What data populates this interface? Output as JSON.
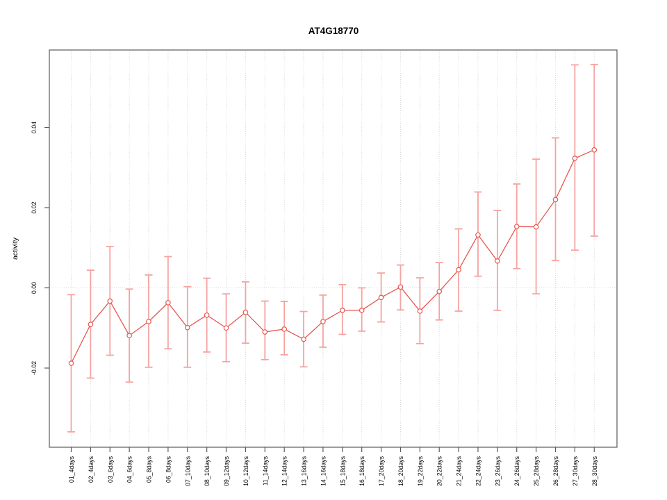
{
  "chart_data": {
    "type": "line",
    "title": "AT4G18770",
    "ylabel": "activity",
    "xlabel": "",
    "legend": "none",
    "marker": "open-circle",
    "error_bars": true,
    "categories": [
      "01_4days",
      "02_4days",
      "03_6days",
      "04_6days",
      "05_8days",
      "06_8days",
      "07_10days",
      "08_10days",
      "09_12days",
      "10_12days",
      "11_14days",
      "12_14days",
      "13_16days",
      "14_16days",
      "15_18days",
      "16_18days",
      "17_20days",
      "18_20days",
      "19_22days",
      "20_22days",
      "21_24days",
      "22_24days",
      "23_26days",
      "24_26days",
      "25_28days",
      "26_28days",
      "27_30days",
      "28_30days"
    ],
    "series": [
      {
        "name": "activity",
        "values": [
          -0.0188,
          -0.0091,
          -0.0033,
          -0.0119,
          -0.0084,
          -0.0037,
          -0.0099,
          -0.0068,
          -0.01,
          -0.0061,
          -0.011,
          -0.0103,
          -0.0128,
          -0.0084,
          -0.0056,
          -0.0056,
          -0.0024,
          0.0002,
          -0.0058,
          -0.0009,
          0.0045,
          0.0132,
          0.0067,
          0.0153,
          0.0152,
          0.022,
          0.0323,
          0.0344
        ],
        "upper": [
          -0.0017,
          0.0044,
          0.0103,
          -0.0003,
          0.0032,
          0.0078,
          0.0003,
          0.0024,
          -0.0015,
          0.0015,
          -0.0033,
          -0.0034,
          -0.0059,
          -0.0018,
          0.0008,
          0.0,
          0.0037,
          0.0057,
          0.0025,
          0.0063,
          0.0147,
          0.0239,
          0.0193,
          0.0259,
          0.0321,
          0.0374,
          0.0556,
          0.0557
        ],
        "lower": [
          -0.0359,
          -0.0225,
          -0.0168,
          -0.0235,
          -0.0198,
          -0.0152,
          -0.0198,
          -0.016,
          -0.0184,
          -0.0138,
          -0.0179,
          -0.0167,
          -0.0197,
          -0.0148,
          -0.0116,
          -0.0108,
          -0.0085,
          -0.0055,
          -0.0139,
          -0.008,
          -0.0058,
          0.0029,
          -0.0056,
          0.0048,
          -0.0015,
          0.0068,
          0.0094,
          0.0129
        ]
      }
    ],
    "yticks": [
      {
        "value": -0.02,
        "label": "-0.02"
      },
      {
        "value": 0.0,
        "label": "0.00"
      },
      {
        "value": 0.02,
        "label": "0.02"
      },
      {
        "value": 0.04,
        "label": "0.04"
      }
    ],
    "ylim": [
      -0.0397,
      0.0593
    ],
    "grid": {
      "vertical_per_category": true,
      "horizontal_at_zero": true,
      "style": "dotted"
    },
    "colors": {
      "series": "#e9564f",
      "error_bar": "#f5a3a1",
      "grid": "#dadada",
      "axis": "#5a5a5a",
      "text": "#000000",
      "background": "#ffffff"
    }
  }
}
